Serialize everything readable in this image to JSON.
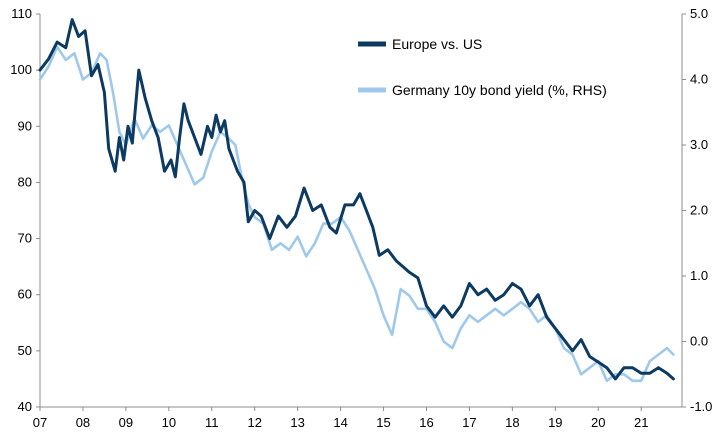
{
  "chart_data": {
    "type": "line",
    "title": "",
    "xlabel": "",
    "ylabel": "",
    "y2label": "",
    "xlim": [
      2007.0,
      2021.95
    ],
    "x_ticks": [
      2007,
      2008,
      2009,
      2010,
      2011,
      2012,
      2013,
      2014,
      2015,
      2016,
      2017,
      2018,
      2019,
      2020,
      2021
    ],
    "x_tick_labels": [
      "07",
      "08",
      "09",
      "10",
      "11",
      "12",
      "13",
      "14",
      "15",
      "16",
      "17",
      "18",
      "19",
      "20",
      "21"
    ],
    "ylim": [
      40,
      110
    ],
    "y_ticks": [
      40,
      50,
      60,
      70,
      80,
      90,
      100,
      110
    ],
    "y_tick_labels": [
      "40",
      "50",
      "60",
      "70",
      "80",
      "90",
      "100",
      "110"
    ],
    "y2lim": [
      -1.0,
      5.0
    ],
    "y2_ticks": [
      -1.0,
      0.0,
      1.0,
      2.0,
      3.0,
      4.0,
      5.0
    ],
    "y2_tick_labels": [
      "-1.0",
      "0.0",
      "1.0",
      "2.0",
      "3.0",
      "4.0",
      "5.0"
    ],
    "grid": false,
    "legend_position": "top-right",
    "series": [
      {
        "name": "Europe vs. US",
        "axis": "left",
        "color": "#0c3a63",
        "x": [
          2007.0,
          2007.2,
          2007.4,
          2007.6,
          2007.75,
          2007.9,
          2008.05,
          2008.2,
          2008.35,
          2008.5,
          2008.6,
          2008.75,
          2008.85,
          2008.95,
          2009.05,
          2009.15,
          2009.3,
          2009.45,
          2009.6,
          2009.75,
          2009.9,
          2010.05,
          2010.15,
          2010.25,
          2010.35,
          2010.45,
          2010.6,
          2010.75,
          2010.9,
          2011.0,
          2011.1,
          2011.2,
          2011.3,
          2011.4,
          2011.5,
          2011.6,
          2011.75,
          2011.85,
          2012.0,
          2012.15,
          2012.35,
          2012.55,
          2012.75,
          2012.95,
          2013.15,
          2013.35,
          2013.55,
          2013.75,
          2013.9,
          2014.1,
          2014.3,
          2014.45,
          2014.6,
          2014.75,
          2014.9,
          2015.1,
          2015.3,
          2015.45,
          2015.6,
          2015.8,
          2016.0,
          2016.2,
          2016.4,
          2016.6,
          2016.8,
          2017.0,
          2017.2,
          2017.4,
          2017.6,
          2017.8,
          2018.0,
          2018.2,
          2018.4,
          2018.6,
          2018.8,
          2019.0,
          2019.2,
          2019.4,
          2019.6,
          2019.8,
          2020.0,
          2020.2,
          2020.4,
          2020.6,
          2020.8,
          2021.0,
          2021.2,
          2021.4,
          2021.6,
          2021.75
        ],
        "values": [
          100,
          102,
          105,
          104,
          109,
          106,
          107,
          99,
          101,
          96,
          86,
          82,
          88,
          84,
          90,
          87,
          100,
          95,
          91,
          88,
          82,
          84,
          81,
          88,
          94,
          91,
          88,
          85,
          90,
          88,
          92,
          89,
          91,
          86,
          84,
          82,
          80,
          73,
          75,
          74,
          70,
          74,
          72,
          74,
          79,
          75,
          76,
          72,
          71,
          76,
          76,
          78,
          75,
          72,
          67,
          68,
          66,
          65,
          64,
          63,
          58,
          56,
          58,
          56,
          58,
          62,
          60,
          61,
          59,
          60,
          62,
          61,
          58,
          60,
          56,
          54,
          52,
          50,
          52,
          49,
          48,
          47,
          45,
          47,
          47,
          46,
          46,
          47,
          46,
          45
        ]
      },
      {
        "name": "Germany 10y bond yield (%, RHS)",
        "axis": "right",
        "color": "#9fc9ea",
        "x": [
          2007.0,
          2007.2,
          2007.4,
          2007.6,
          2007.8,
          2008.0,
          2008.2,
          2008.4,
          2008.55,
          2008.7,
          2008.85,
          2009.0,
          2009.2,
          2009.4,
          2009.6,
          2009.8,
          2010.0,
          2010.2,
          2010.4,
          2010.6,
          2010.8,
          2011.0,
          2011.2,
          2011.4,
          2011.55,
          2011.7,
          2011.85,
          2012.0,
          2012.2,
          2012.4,
          2012.6,
          2012.8,
          2013.0,
          2013.2,
          2013.4,
          2013.6,
          2013.8,
          2014.0,
          2014.2,
          2014.4,
          2014.6,
          2014.8,
          2015.0,
          2015.2,
          2015.4,
          2015.6,
          2015.8,
          2016.0,
          2016.2,
          2016.4,
          2016.6,
          2016.8,
          2017.0,
          2017.2,
          2017.4,
          2017.6,
          2017.8,
          2018.0,
          2018.2,
          2018.4,
          2018.6,
          2018.8,
          2019.0,
          2019.2,
          2019.4,
          2019.6,
          2019.8,
          2020.0,
          2020.2,
          2020.4,
          2020.6,
          2020.8,
          2021.0,
          2021.2,
          2021.4,
          2021.6,
          2021.75
        ],
        "values": [
          4.0,
          4.2,
          4.5,
          4.3,
          4.4,
          4.0,
          4.1,
          4.4,
          4.3,
          3.8,
          3.2,
          3.0,
          3.4,
          3.1,
          3.3,
          3.2,
          3.3,
          3.0,
          2.7,
          2.4,
          2.5,
          2.9,
          3.2,
          3.1,
          3.0,
          2.5,
          2.1,
          1.9,
          1.8,
          1.4,
          1.5,
          1.4,
          1.6,
          1.3,
          1.5,
          1.8,
          1.8,
          1.9,
          1.7,
          1.4,
          1.1,
          0.8,
          0.4,
          0.1,
          0.8,
          0.7,
          0.5,
          0.5,
          0.3,
          0.0,
          -0.1,
          0.2,
          0.4,
          0.3,
          0.4,
          0.5,
          0.4,
          0.5,
          0.6,
          0.5,
          0.3,
          0.4,
          0.2,
          -0.1,
          -0.2,
          -0.5,
          -0.4,
          -0.3,
          -0.6,
          -0.5,
          -0.5,
          -0.6,
          -0.6,
          -0.3,
          -0.2,
          -0.1,
          -0.2
        ]
      }
    ]
  }
}
